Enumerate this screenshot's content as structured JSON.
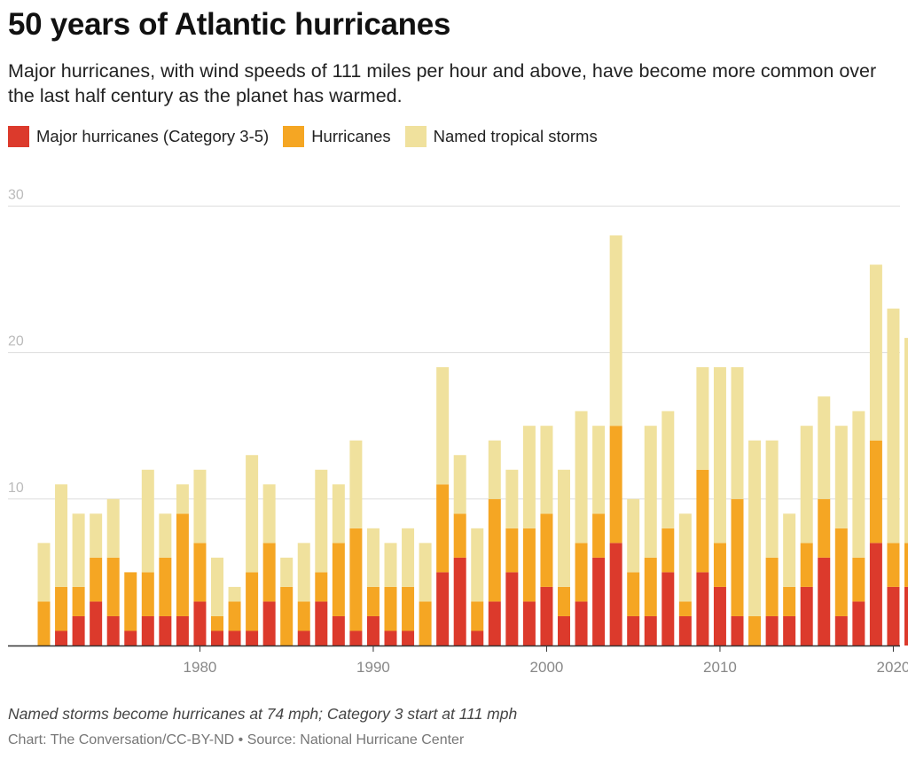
{
  "title": "50 years of Atlantic hurricanes",
  "subtitle": "Major hurricanes, with wind speeds of 111 miles per hour and above, have become more common over the last half century as the planet has warmed.",
  "note": "Named storms become hurricanes at 74 mph; Category 3 start at 111 mph",
  "credit": "Chart: The Conversation/CC-BY-ND • Source: National Hurricane Center",
  "colors": {
    "major": "#dc3a2c",
    "hurricanes": "#f5a623",
    "storms": "#f0e19d",
    "grid": "#dddddd",
    "axis": "#333333",
    "tick_label": "#888888",
    "y_tick_label": "#bbbbbb"
  },
  "chart_data": {
    "type": "bar",
    "stacked": true,
    "legend_position": "top-left",
    "grid": true,
    "ylim": [
      0,
      30
    ],
    "yticks": [
      10,
      20,
      30
    ],
    "xticks": [
      1980,
      1990,
      2000,
      2010,
      2020
    ],
    "x": [
      1971,
      1972,
      1973,
      1974,
      1975,
      1976,
      1977,
      1978,
      1979,
      1980,
      1981,
      1982,
      1983,
      1984,
      1985,
      1986,
      1987,
      1988,
      1989,
      1990,
      1991,
      1992,
      1993,
      1994,
      1995,
      1996,
      1997,
      1998,
      1999,
      2000,
      2001,
      2002,
      2003,
      2004,
      2005,
      2006,
      2007,
      2008,
      2009,
      2010,
      2011,
      2012,
      2013,
      2014,
      2015,
      2016,
      2017,
      2018,
      2019,
      2020,
      2021
    ],
    "series": [
      {
        "name": "Major hurricanes (Category 3-5)",
        "color_key": "major",
        "values": [
          0,
          1,
          2,
          3,
          2,
          1,
          2,
          2,
          2,
          3,
          1,
          1,
          1,
          3,
          0,
          1,
          3,
          2,
          1,
          2,
          1,
          1,
          0,
          5,
          6,
          1,
          3,
          5,
          3,
          4,
          2,
          3,
          6,
          7,
          2,
          2,
          5,
          2,
          5,
          4,
          2,
          0,
          2,
          2,
          4,
          6,
          2,
          3,
          7,
          4,
          4
        ]
      },
      {
        "name": "Hurricanes",
        "color_key": "hurricanes",
        "values": [
          3,
          3,
          2,
          3,
          4,
          4,
          3,
          4,
          7,
          4,
          1,
          2,
          4,
          4,
          4,
          2,
          2,
          5,
          7,
          2,
          3,
          3,
          3,
          6,
          3,
          2,
          7,
          3,
          5,
          5,
          2,
          4,
          3,
          8,
          3,
          4,
          3,
          1,
          7,
          3,
          8,
          2,
          4,
          2,
          3,
          4,
          6,
          3,
          7,
          3,
          3
        ]
      },
      {
        "name": "Named tropical storms",
        "color_key": "storms",
        "values": [
          4,
          7,
          5,
          3,
          4,
          0,
          7,
          3,
          2,
          5,
          4,
          1,
          8,
          4,
          2,
          4,
          7,
          4,
          6,
          4,
          3,
          4,
          4,
          8,
          4,
          5,
          4,
          4,
          7,
          6,
          8,
          9,
          6,
          13,
          5,
          9,
          8,
          6,
          7,
          12,
          9,
          12,
          8,
          5,
          8,
          7,
          7,
          10,
          12,
          16,
          14
        ]
      }
    ]
  }
}
